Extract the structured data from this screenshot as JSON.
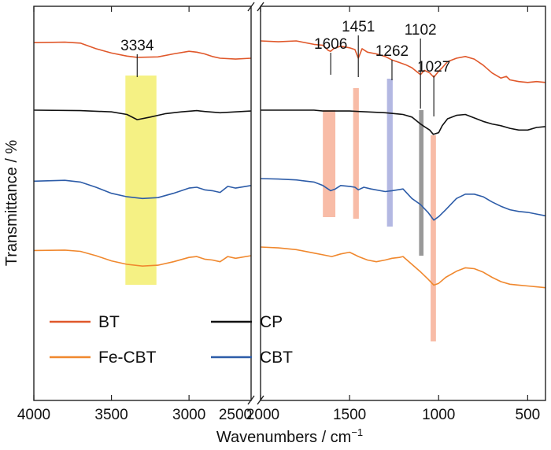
{
  "chart_data": {
    "type": "line",
    "title": "",
    "xlabel": "Wavenumbers / cm",
    "xlabel_superscript": "−1",
    "ylabel": "Transmittance / %",
    "x_axis_break": true,
    "panels": [
      {
        "xlim": [
          4000,
          2600
        ],
        "ticks": [
          4000,
          3500,
          3000,
          2500
        ],
        "tick_labels": [
          "4000",
          "3500",
          "3000",
          "2500"
        ]
      },
      {
        "xlim": [
          2000,
          400
        ],
        "ticks": [
          2000,
          1500,
          1000,
          500
        ],
        "tick_labels": [
          "2000",
          "1500",
          "1000",
          "500"
        ]
      }
    ],
    "series": [
      {
        "name": "BT",
        "color": "#e0582b",
        "offset": 0,
        "low": [
          [
            4000,
            4
          ],
          [
            3800,
            3
          ],
          [
            3700,
            5
          ],
          [
            3600,
            18
          ],
          [
            3500,
            28
          ],
          [
            3400,
            35
          ],
          [
            3334,
            38
          ],
          [
            3200,
            37
          ],
          [
            3100,
            30
          ],
          [
            3000,
            24
          ],
          [
            2950,
            26
          ],
          [
            2900,
            30
          ],
          [
            2850,
            36
          ],
          [
            2800,
            40
          ],
          [
            2700,
            42
          ],
          [
            2600,
            40
          ]
        ],
        "high": [
          [
            2000,
            0
          ],
          [
            1900,
            2
          ],
          [
            1800,
            0
          ],
          [
            1700,
            8
          ],
          [
            1650,
            10
          ],
          [
            1620,
            22
          ],
          [
            1606,
            24
          ],
          [
            1590,
            18
          ],
          [
            1550,
            12
          ],
          [
            1500,
            16
          ],
          [
            1470,
            20
          ],
          [
            1451,
            40
          ],
          [
            1430,
            18
          ],
          [
            1400,
            26
          ],
          [
            1350,
            30
          ],
          [
            1300,
            36
          ],
          [
            1262,
            44
          ],
          [
            1220,
            50
          ],
          [
            1180,
            56
          ],
          [
            1150,
            62
          ],
          [
            1102,
            78
          ],
          [
            1080,
            68
          ],
          [
            1050,
            74
          ],
          [
            1027,
            84
          ],
          [
            1000,
            70
          ],
          [
            980,
            62
          ],
          [
            950,
            48
          ],
          [
            900,
            40
          ],
          [
            850,
            36
          ],
          [
            800,
            42
          ],
          [
            750,
            56
          ],
          [
            700,
            74
          ],
          [
            650,
            86
          ],
          [
            620,
            82
          ],
          [
            600,
            90
          ],
          [
            550,
            94
          ],
          [
            500,
            96
          ],
          [
            450,
            94
          ],
          [
            400,
            96
          ]
        ]
      },
      {
        "name": "CP",
        "color": "#111111",
        "offset": 88,
        "low": [
          [
            4000,
            0
          ],
          [
            3700,
            1
          ],
          [
            3500,
            4
          ],
          [
            3400,
            10
          ],
          [
            3334,
            22
          ],
          [
            3250,
            16
          ],
          [
            3150,
            8
          ],
          [
            3050,
            4
          ],
          [
            2950,
            1
          ],
          [
            2900,
            3
          ],
          [
            2800,
            6
          ],
          [
            2700,
            4
          ],
          [
            2600,
            2
          ]
        ],
        "high": [
          [
            2000,
            0
          ],
          [
            1700,
            0
          ],
          [
            1650,
            2
          ],
          [
            1600,
            2
          ],
          [
            1500,
            2
          ],
          [
            1450,
            3
          ],
          [
            1300,
            6
          ],
          [
            1200,
            10
          ],
          [
            1150,
            16
          ],
          [
            1102,
            32
          ],
          [
            1080,
            38
          ],
          [
            1050,
            46
          ],
          [
            1030,
            56
          ],
          [
            1000,
            52
          ],
          [
            980,
            36
          ],
          [
            950,
            20
          ],
          [
            900,
            12
          ],
          [
            850,
            10
          ],
          [
            800,
            18
          ],
          [
            750,
            26
          ],
          [
            700,
            32
          ],
          [
            650,
            36
          ],
          [
            600,
            42
          ],
          [
            550,
            46
          ],
          [
            500,
            46
          ],
          [
            450,
            40
          ],
          [
            400,
            38
          ]
        ]
      },
      {
        "name": "CBT",
        "color": "#2d5ca8",
        "offset": 175,
        "low": [
          [
            4000,
            6
          ],
          [
            3800,
            4
          ],
          [
            3700,
            8
          ],
          [
            3600,
            20
          ],
          [
            3500,
            34
          ],
          [
            3400,
            42
          ],
          [
            3300,
            46
          ],
          [
            3200,
            44
          ],
          [
            3100,
            34
          ],
          [
            3000,
            22
          ],
          [
            2950,
            20
          ],
          [
            2900,
            26
          ],
          [
            2850,
            28
          ],
          [
            2800,
            32
          ],
          [
            2750,
            18
          ],
          [
            2700,
            22
          ],
          [
            2600,
            16
          ]
        ],
        "high": [
          [
            2000,
            0
          ],
          [
            1900,
            1
          ],
          [
            1800,
            3
          ],
          [
            1700,
            8
          ],
          [
            1650,
            16
          ],
          [
            1606,
            28
          ],
          [
            1580,
            24
          ],
          [
            1550,
            16
          ],
          [
            1500,
            18
          ],
          [
            1470,
            20
          ],
          [
            1451,
            26
          ],
          [
            1420,
            20
          ],
          [
            1380,
            24
          ],
          [
            1300,
            30
          ],
          [
            1262,
            28
          ],
          [
            1200,
            24
          ],
          [
            1150,
            46
          ],
          [
            1102,
            60
          ],
          [
            1060,
            78
          ],
          [
            1027,
            96
          ],
          [
            1000,
            88
          ],
          [
            960,
            72
          ],
          [
            900,
            46
          ],
          [
            850,
            36
          ],
          [
            800,
            36
          ],
          [
            750,
            42
          ],
          [
            700,
            54
          ],
          [
            650,
            64
          ],
          [
            600,
            72
          ],
          [
            550,
            76
          ],
          [
            500,
            78
          ],
          [
            450,
            82
          ],
          [
            400,
            86
          ]
        ]
      },
      {
        "name": "Fe-CBT",
        "color": "#f0882e",
        "offset": 255,
        "low": [
          [
            4000,
            8
          ],
          [
            3800,
            7
          ],
          [
            3700,
            10
          ],
          [
            3600,
            20
          ],
          [
            3500,
            32
          ],
          [
            3400,
            40
          ],
          [
            3300,
            44
          ],
          [
            3200,
            42
          ],
          [
            3100,
            34
          ],
          [
            3000,
            24
          ],
          [
            2950,
            22
          ],
          [
            2900,
            28
          ],
          [
            2850,
            30
          ],
          [
            2800,
            34
          ],
          [
            2750,
            22
          ],
          [
            2700,
            26
          ],
          [
            2600,
            20
          ]
        ],
        "high": [
          [
            2000,
            0
          ],
          [
            1900,
            2
          ],
          [
            1800,
            6
          ],
          [
            1700,
            14
          ],
          [
            1650,
            18
          ],
          [
            1600,
            22
          ],
          [
            1550,
            16
          ],
          [
            1500,
            12
          ],
          [
            1470,
            18
          ],
          [
            1450,
            22
          ],
          [
            1400,
            30
          ],
          [
            1350,
            34
          ],
          [
            1300,
            30
          ],
          [
            1262,
            26
          ],
          [
            1220,
            24
          ],
          [
            1200,
            22
          ],
          [
            1150,
            40
          ],
          [
            1100,
            58
          ],
          [
            1060,
            74
          ],
          [
            1027,
            88
          ],
          [
            1000,
            84
          ],
          [
            960,
            70
          ],
          [
            900,
            56
          ],
          [
            850,
            48
          ],
          [
            800,
            50
          ],
          [
            750,
            58
          ],
          [
            700,
            70
          ],
          [
            650,
            80
          ],
          [
            600,
            86
          ],
          [
            550,
            88
          ],
          [
            500,
            90
          ],
          [
            450,
            92
          ],
          [
            400,
            94
          ]
        ]
      }
    ],
    "highlight_bands": [
      {
        "label": "3334",
        "panel": 0,
        "x_from": 3410,
        "x_to": 3210,
        "color": "#f3ee6e"
      },
      {
        "label": "1606",
        "panel": 1,
        "x_from": 1650,
        "x_to": 1580,
        "color": "#f5a58a"
      },
      {
        "label": "1451",
        "panel": 1,
        "x_from": 1480,
        "x_to": 1448,
        "color": "#f5a58a"
      },
      {
        "label": "1262",
        "panel": 1,
        "x_from": 1290,
        "x_to": 1258,
        "color": "#9aa0d8"
      },
      {
        "label": "1102",
        "panel": 1,
        "x_from": 1110,
        "x_to": 1085,
        "color": "#777777"
      },
      {
        "label": "1027",
        "panel": 1,
        "x_from": 1045,
        "x_to": 1015,
        "color": "#f5a58a"
      }
    ],
    "peak_labels": [
      "3334",
      "1606",
      "1451",
      "1262",
      "1102",
      "1027"
    ],
    "legend": {
      "placement": "bottom-left",
      "entries": [
        {
          "name": "BT",
          "color": "#e0582b"
        },
        {
          "name": "CP",
          "color": "#111111"
        },
        {
          "name": "Fe-CBT",
          "color": "#f0882e"
        },
        {
          "name": "CBT",
          "color": "#2d5ca8"
        }
      ]
    }
  }
}
